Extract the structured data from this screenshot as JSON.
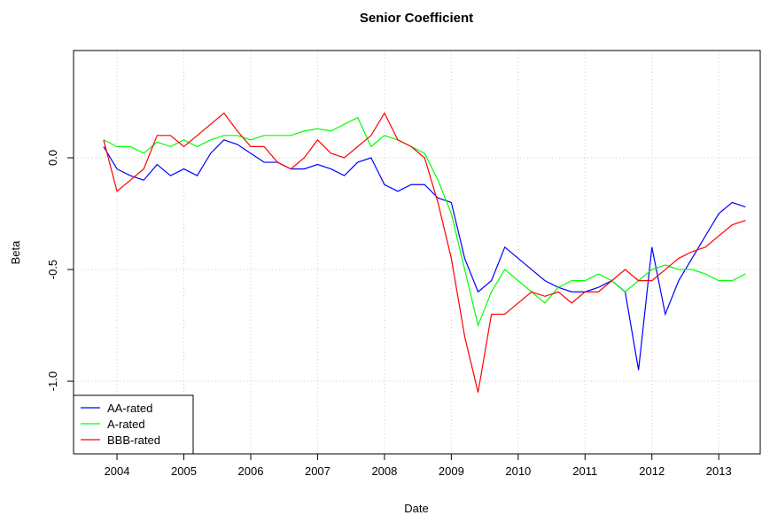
{
  "chart_data": {
    "type": "line",
    "title": "Senior Coefficient",
    "x_label": "Date",
    "y_label": "Beta",
    "x": [
      2003.8,
      2004.0,
      2004.2,
      2004.4,
      2004.6,
      2004.8,
      2005.0,
      2005.2,
      2005.4,
      2005.6,
      2005.8,
      2006.0,
      2006.2,
      2006.4,
      2006.6,
      2006.8,
      2007.0,
      2007.2,
      2007.4,
      2007.6,
      2007.8,
      2008.0,
      2008.2,
      2008.4,
      2008.6,
      2008.8,
      2009.0,
      2009.2,
      2009.4,
      2009.6,
      2009.8,
      2010.0,
      2010.2,
      2010.4,
      2010.6,
      2010.8,
      2011.0,
      2011.2,
      2011.4,
      2011.6,
      2011.8,
      2012.0,
      2012.2,
      2012.4,
      2012.6,
      2012.8,
      2013.0,
      2013.2,
      2013.4
    ],
    "series": [
      {
        "name": "AA-rated",
        "color": "#0000ff",
        "values": [
          0.05,
          -0.05,
          -0.08,
          -0.1,
          -0.03,
          -0.08,
          -0.05,
          -0.08,
          0.02,
          0.08,
          0.06,
          0.02,
          -0.02,
          -0.02,
          -0.05,
          -0.05,
          -0.03,
          -0.05,
          -0.08,
          -0.02,
          0,
          -0.12,
          -0.15,
          -0.12,
          -0.12,
          -0.18,
          -0.2,
          -0.45,
          -0.6,
          -0.55,
          -0.4,
          -0.45,
          -0.5,
          -0.55,
          -0.58,
          -0.6,
          -0.6,
          -0.58,
          -0.55,
          -0.6,
          -0.95,
          -0.4,
          -0.7,
          -0.55,
          -0.45,
          -0.35,
          -0.25,
          -0.2,
          -0.22
        ]
      },
      {
        "name": "A-rated",
        "color": "#00ff00",
        "values": [
          0.08,
          0.05,
          0.05,
          0.02,
          0.07,
          0.05,
          0.08,
          0.05,
          0.08,
          0.1,
          0.1,
          0.08,
          0.1,
          0.1,
          0.1,
          0.12,
          0.13,
          0.12,
          0.15,
          0.18,
          0.05,
          0.1,
          0.08,
          0.05,
          0.02,
          -0.1,
          -0.25,
          -0.5,
          -0.75,
          -0.6,
          -0.5,
          -0.55,
          -0.6,
          -0.65,
          -0.58,
          -0.55,
          -0.55,
          -0.52,
          -0.55,
          -0.6,
          -0.55,
          -0.5,
          -0.48,
          -0.5,
          -0.5,
          -0.52,
          -0.55,
          -0.55,
          -0.52
        ]
      },
      {
        "name": "BBB-rated",
        "color": "#ff0000",
        "values": [
          0.08,
          -0.15,
          -0.1,
          -0.05,
          0.1,
          0.1,
          0.05,
          0.1,
          0.15,
          0.2,
          0.12,
          0.05,
          0.05,
          -0.02,
          -0.05,
          0,
          0.08,
          0.02,
          0,
          0.05,
          0.1,
          0.2,
          0.08,
          0.05,
          0,
          -0.2,
          -0.45,
          -0.8,
          -1.05,
          -0.7,
          -0.7,
          -0.65,
          -0.6,
          -0.62,
          -0.6,
          -0.65,
          -0.6,
          -0.6,
          -0.55,
          -0.5,
          -0.55,
          -0.55,
          -0.5,
          -0.45,
          -0.42,
          -0.4,
          -0.35,
          -0.3,
          -0.28
        ]
      }
    ],
    "xlim": [
      2003.35,
      2013.62
    ],
    "xticks": [
      2004,
      2005,
      2006,
      2007,
      2008,
      2009,
      2010,
      2011,
      2012,
      2013
    ],
    "ylim": [
      -1.325,
      0.48
    ],
    "yticks": [
      {
        "value": -1,
        "label": "-1.0"
      },
      -0.5,
      {
        "value": 0,
        "label": "0.0"
      }
    ],
    "grid": true,
    "legend": "bottomleft"
  }
}
